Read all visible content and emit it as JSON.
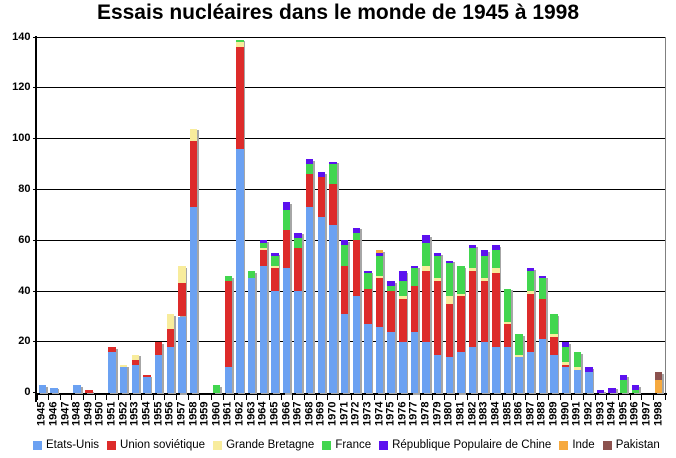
{
  "title": "Essais nucléaires dans le monde de 1945 à 1998",
  "chart_data": {
    "type": "bar",
    "stacked": true,
    "title": "Essais nucléaires dans le monde de 1945 à 1998",
    "xlabel": "",
    "ylabel": "",
    "ylim": [
      0,
      140
    ],
    "yticks": [
      0,
      20,
      40,
      60,
      80,
      100,
      120,
      140
    ],
    "grid": true,
    "legend_position": "bottom",
    "categories": [
      1945,
      1946,
      1947,
      1948,
      1949,
      1950,
      1951,
      1952,
      1953,
      1954,
      1955,
      1956,
      1957,
      1958,
      1959,
      1960,
      1961,
      1962,
      1963,
      1964,
      1965,
      1966,
      1967,
      1968,
      1969,
      1970,
      1971,
      1972,
      1973,
      1974,
      1975,
      1976,
      1977,
      1978,
      1979,
      1980,
      1981,
      1982,
      1983,
      1984,
      1985,
      1986,
      1987,
      1988,
      1989,
      1990,
      1991,
      1992,
      1993,
      1994,
      1995,
      1996,
      1997,
      1998
    ],
    "series": [
      {
        "name": "Etats-Unis",
        "color": "#6ba1f2",
        "values": [
          3,
          2,
          0,
          3,
          0,
          0,
          16,
          10,
          11,
          6,
          15,
          18,
          30,
          73,
          0,
          0,
          10,
          96,
          45,
          50,
          40,
          49,
          40,
          73,
          69,
          66,
          31,
          38,
          27,
          26,
          24,
          20,
          24,
          20,
          15,
          14,
          16,
          18,
          20,
          18,
          18,
          14,
          16,
          21,
          15,
          10,
          9,
          8,
          0,
          0,
          0,
          0,
          0,
          0
        ]
      },
      {
        "name": "Union soviétique",
        "color": "#dd2b2a",
        "values": [
          0,
          0,
          0,
          0,
          1,
          0,
          2,
          0,
          2,
          1,
          5,
          7,
          13,
          26,
          0,
          0,
          34,
          40,
          0,
          6,
          9,
          15,
          17,
          13,
          16,
          16,
          19,
          22,
          14,
          19,
          16,
          17,
          18,
          28,
          29,
          21,
          22,
          30,
          24,
          29,
          9,
          0,
          23,
          16,
          7,
          1,
          0,
          0,
          0,
          0,
          0,
          0,
          0,
          0
        ]
      },
      {
        "name": "Grande Bretagne",
        "color": "#f8ec9c",
        "values": [
          0,
          0,
          0,
          0,
          0,
          0,
          0,
          1,
          2,
          0,
          0,
          6,
          7,
          5,
          0,
          0,
          0,
          2,
          0,
          1,
          1,
          0,
          0,
          0,
          0,
          0,
          0,
          0,
          0,
          1,
          0,
          1,
          0,
          2,
          1,
          3,
          1,
          1,
          1,
          2,
          1,
          1,
          1,
          0,
          1,
          1,
          1,
          0,
          0,
          0,
          0,
          0,
          0,
          0
        ]
      },
      {
        "name": "France",
        "color": "#42d64f",
        "values": [
          0,
          0,
          0,
          0,
          0,
          0,
          0,
          0,
          0,
          0,
          0,
          0,
          0,
          0,
          0,
          3,
          2,
          1,
          3,
          2,
          4,
          8,
          4,
          4,
          0,
          8,
          8,
          3,
          6,
          8,
          2,
          6,
          7,
          9,
          9,
          13,
          11,
          8,
          9,
          7,
          13,
          8,
          8,
          8,
          8,
          6,
          6,
          0,
          0,
          0,
          5,
          1,
          0,
          0
        ]
      },
      {
        "name": "République Populaire de Chine",
        "color": "#5c11ef",
        "values": [
          0,
          0,
          0,
          0,
          0,
          0,
          0,
          0,
          0,
          0,
          0,
          0,
          0,
          0,
          0,
          0,
          0,
          0,
          0,
          1,
          1,
          3,
          2,
          2,
          2,
          1,
          2,
          2,
          1,
          1,
          2,
          4,
          1,
          3,
          1,
          1,
          0,
          1,
          2,
          2,
          0,
          0,
          1,
          1,
          0,
          2,
          0,
          2,
          1,
          2,
          2,
          2,
          0,
          0
        ]
      },
      {
        "name": "Inde",
        "color": "#f6a93e",
        "values": [
          0,
          0,
          0,
          0,
          0,
          0,
          0,
          0,
          0,
          0,
          0,
          0,
          0,
          0,
          0,
          0,
          0,
          0,
          0,
          0,
          0,
          0,
          0,
          0,
          0,
          0,
          0,
          0,
          0,
          1,
          0,
          0,
          0,
          0,
          0,
          0,
          0,
          0,
          0,
          0,
          0,
          0,
          0,
          0,
          0,
          0,
          0,
          0,
          0,
          0,
          0,
          0,
          0,
          5
        ]
      },
      {
        "name": "Pakistan",
        "color": "#8c524e",
        "values": [
          0,
          0,
          0,
          0,
          0,
          0,
          0,
          0,
          0,
          0,
          0,
          0,
          0,
          0,
          0,
          0,
          0,
          0,
          0,
          0,
          0,
          0,
          0,
          0,
          0,
          0,
          0,
          0,
          0,
          0,
          0,
          0,
          0,
          0,
          0,
          0,
          0,
          0,
          0,
          0,
          0,
          0,
          0,
          0,
          0,
          0,
          0,
          0,
          0,
          0,
          0,
          0,
          0,
          3
        ]
      }
    ]
  }
}
